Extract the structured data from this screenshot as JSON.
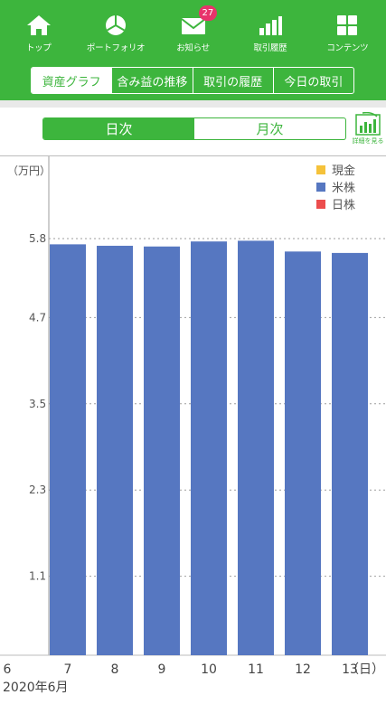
{
  "nav": {
    "items": [
      {
        "label": "トップ",
        "icon": "home-icon"
      },
      {
        "label": "ポートフォリオ",
        "icon": "pie-chart-icon"
      },
      {
        "label": "お知らせ",
        "icon": "mail-icon",
        "badge": "27"
      },
      {
        "label": "取引履歴",
        "icon": "bar-chart-icon"
      },
      {
        "label": "コンテンツ",
        "icon": "grid-icon"
      }
    ]
  },
  "subtabs": {
    "items": [
      "資産グラフ",
      "含み益の推移",
      "取引の履歴",
      "今日の取引"
    ],
    "active": 0
  },
  "period": {
    "daily": "日次",
    "monthly": "月次",
    "active": "daily"
  },
  "detail_label": "詳細を見る",
  "colors": {
    "brand": "#3db53d",
    "bar": "#5677c1",
    "cash": "#f5c23a",
    "us_stock": "#5677c1",
    "jp_stock": "#ec4d4d",
    "badge": "#e8336b"
  },
  "chart_data": {
    "type": "bar",
    "unit_label": "（万円）",
    "x_unit": "（日）",
    "month_label": "2020年6月",
    "x_ticks": [
      "6",
      "7",
      "8",
      "9",
      "10",
      "11",
      "12",
      "13"
    ],
    "categories": [
      "7",
      "8",
      "9",
      "10",
      "11",
      "12",
      "13"
    ],
    "series": [
      {
        "name": "現金",
        "color": "#f5c23a",
        "values": [
          0,
          0,
          0,
          0,
          0,
          0,
          0
        ]
      },
      {
        "name": "米株",
        "color": "#5677c1",
        "values": [
          5.72,
          5.7,
          5.69,
          5.76,
          5.77,
          5.62,
          5.6
        ]
      },
      {
        "name": "日株",
        "color": "#ec4d4d",
        "values": [
          0,
          0,
          0,
          0,
          0,
          0,
          0
        ]
      }
    ],
    "y_ticks": [
      "1.1",
      "2.3",
      "3.5",
      "4.7",
      "5.8"
    ],
    "ylim": [
      0,
      5.8
    ],
    "grid": true,
    "legend": "top-right"
  }
}
